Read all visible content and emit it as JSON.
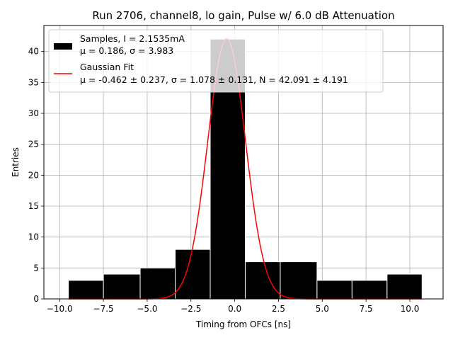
{
  "chart_data": {
    "type": "bar",
    "title": "Run 2706, channel8, lo gain, Pulse w/ 6.0 dB Attenuation",
    "xlabel": "Timing from OFCs [ns]",
    "ylabel": "Entries",
    "xlim": [
      -10.9,
      11.9
    ],
    "ylim": [
      0,
      44.2
    ],
    "xticks": [
      -10.0,
      -7.5,
      -5.0,
      -2.5,
      0.0,
      2.5,
      5.0,
      7.5,
      10.0
    ],
    "xtick_labels": [
      "−10.0",
      "−7.5",
      "−5.0",
      "−2.5",
      "0.0",
      "2.5",
      "5.0",
      "7.5",
      "10.0"
    ],
    "yticks": [
      0,
      5,
      10,
      15,
      20,
      25,
      30,
      35,
      40
    ],
    "ytick_labels": [
      "0",
      "5",
      "10",
      "15",
      "20",
      "25",
      "30",
      "35",
      "40"
    ],
    "grid": true,
    "legend_position": "top-left",
    "bins": [
      {
        "x0": -9.5,
        "x1": -7.5,
        "value": 3
      },
      {
        "x0": -7.5,
        "x1": -5.4,
        "value": 4
      },
      {
        "x0": -5.4,
        "x1": -3.4,
        "value": 5
      },
      {
        "x0": -3.4,
        "x1": -1.4,
        "value": 8
      },
      {
        "x0": -1.4,
        "x1": 0.6,
        "value": 42
      },
      {
        "x0": 0.6,
        "x1": 2.6,
        "value": 6
      },
      {
        "x0": 2.6,
        "x1": 4.7,
        "value": 6
      },
      {
        "x0": 4.7,
        "x1": 6.7,
        "value": 3
      },
      {
        "x0": 6.7,
        "x1": 8.7,
        "value": 3
      },
      {
        "x0": 8.7,
        "x1": 10.7,
        "value": 4
      }
    ],
    "fit": {
      "mu": -0.462,
      "sigma": 1.078,
      "N": 42.091,
      "x_range": [
        -9.5,
        10.7
      ]
    },
    "legend": [
      {
        "line1": "Samples, I = 2.1535mA",
        "line2": "μ = 0.186, σ = 3.983",
        "color": "#000000"
      },
      {
        "line1": "Gaussian Fit",
        "line2": "μ = -0.462 ± 0.237, σ = 1.078 ± 0.131, N = 42.091 ± 4.191",
        "color": "#ff0000"
      }
    ]
  }
}
